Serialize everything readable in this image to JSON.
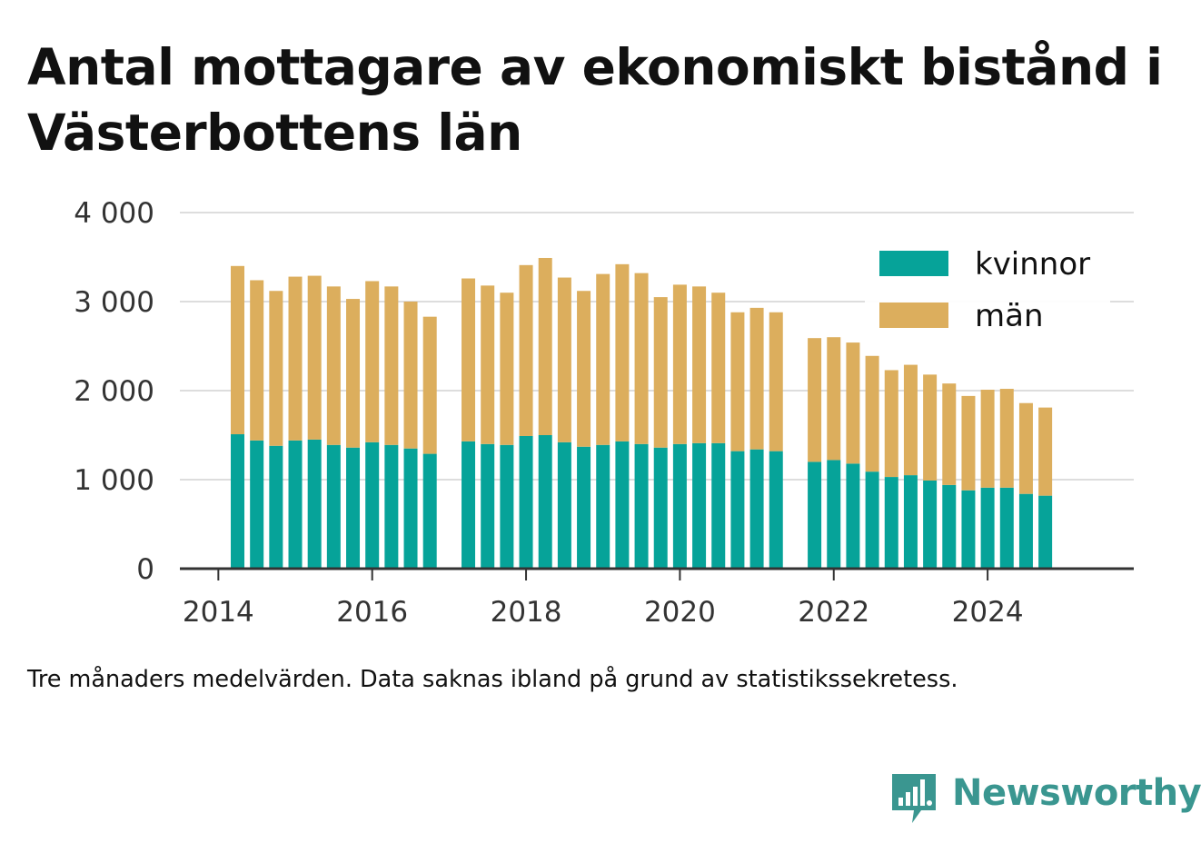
{
  "title": "Antal mottagare av ekonomiskt bistånd i Västerbottens län",
  "note": "Tre månaders medelvärden. Data saknas ibland på grund av statistikssekretess.",
  "brand": {
    "name": "Newsworthy",
    "icon": "bar-chart-speech-bubble-icon",
    "color": "#3a9690"
  },
  "chart_data": {
    "type": "bar",
    "stacked": true,
    "x_ticks": [
      2014,
      2016,
      2018,
      2020,
      2022,
      2024
    ],
    "y_ticks": [
      0,
      1000,
      2000,
      3000,
      4000
    ],
    "y_tick_labels": [
      "0",
      "1 000",
      "2 000",
      "3 000",
      "4 000"
    ],
    "ylim": [
      0,
      4000
    ],
    "xlim": [
      2013.5,
      2025.9
    ],
    "grid": true,
    "legend_position": "top-right",
    "x": [
      2014.25,
      2014.5,
      2014.75,
      2015.0,
      2015.25,
      2015.5,
      2015.75,
      2016.0,
      2016.25,
      2016.5,
      2016.75,
      2017.25,
      2017.5,
      2017.75,
      2018.0,
      2018.25,
      2018.5,
      2018.75,
      2019.0,
      2019.25,
      2019.5,
      2019.75,
      2020.0,
      2020.25,
      2020.5,
      2020.75,
      2021.0,
      2021.25,
      2021.75,
      2022.0,
      2022.25,
      2022.5,
      2022.75,
      2023.0,
      2023.25,
      2023.5,
      2023.75,
      2024.0,
      2024.25,
      2024.5,
      2024.75
    ],
    "series": [
      {
        "name": "kvinnor",
        "color": "#06a399",
        "values": [
          1510,
          1440,
          1380,
          1440,
          1450,
          1390,
          1360,
          1420,
          1390,
          1350,
          1290,
          1430,
          1400,
          1390,
          1490,
          1500,
          1420,
          1370,
          1390,
          1430,
          1400,
          1360,
          1400,
          1410,
          1410,
          1320,
          1340,
          1320,
          1200,
          1220,
          1180,
          1090,
          1030,
          1050,
          990,
          940,
          880,
          910,
          910,
          840,
          820
        ]
      },
      {
        "name": "män",
        "color": "#dcae5d",
        "values": [
          1890,
          1800,
          1740,
          1840,
          1840,
          1780,
          1670,
          1810,
          1780,
          1650,
          1540,
          1830,
          1780,
          1710,
          1920,
          1990,
          1850,
          1750,
          1920,
          1990,
          1920,
          1690,
          1790,
          1760,
          1690,
          1560,
          1590,
          1560,
          1390,
          1380,
          1360,
          1300,
          1200,
          1240,
          1190,
          1140,
          1060,
          1100,
          1110,
          1020,
          990
        ]
      }
    ]
  }
}
